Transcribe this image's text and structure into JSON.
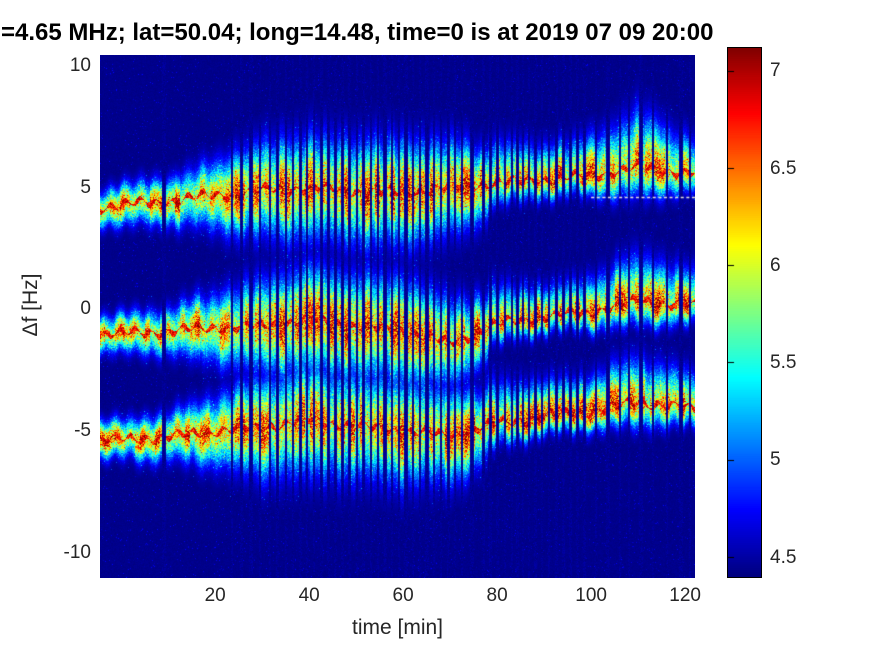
{
  "title": "=4.65 MHz;  lat=50.04; long=14.48, time=0 is at 2019 07 09 20:00",
  "colors": {
    "page_background": "#ffffff",
    "tick_label": "#262626",
    "title_text": "#000000",
    "plot_background_navy": "#00008b",
    "dotted_line": "#e4e4dc"
  },
  "chart_data": {
    "type": "heatmap",
    "title": "=4.65 MHz;  lat=50.04; long=14.48, time=0 is at 2019 07 09 20:00",
    "xlabel": "time [min]",
    "ylabel": "Δf [Hz]",
    "x_unit": "min",
    "y_unit": "Hz",
    "xlim": [
      -4.5,
      122.1
    ],
    "ylim": [
      -11.03,
      10.45
    ],
    "xticks": [
      20,
      40,
      60,
      80,
      100,
      120
    ],
    "yticks": [
      10,
      5,
      0,
      -5,
      -10
    ],
    "grid": false,
    "colormap": "jet",
    "clim": [
      4.4,
      7.12
    ],
    "colorbar_ticks": [
      7,
      6.5,
      6,
      5.5,
      5,
      4.5
    ],
    "background_level": 4.45,
    "bands": [
      {
        "name": "upper-doppler-trace",
        "times_min": [
          -4.5,
          0,
          10,
          20,
          30,
          40,
          50,
          60,
          70,
          80,
          90,
          100,
          110,
          122
        ],
        "center_hz": [
          4.2,
          4.3,
          4.45,
          4.7,
          4.9,
          5.0,
          4.85,
          4.8,
          5.0,
          5.2,
          5.35,
          5.5,
          5.85,
          5.6
        ],
        "spread_hz": [
          0.7,
          0.8,
          0.9,
          1.3,
          1.8,
          2.0,
          2.0,
          2.0,
          1.8,
          1.2,
          1.0,
          1.1,
          1.6,
          1.0
        ]
      },
      {
        "name": "middle-doppler-trace",
        "times_min": [
          -4.5,
          0,
          10,
          20,
          30,
          40,
          50,
          60,
          70,
          80,
          90,
          100,
          110,
          122
        ],
        "center_hz": [
          -1.0,
          -1.0,
          -0.9,
          -0.75,
          -0.7,
          -0.4,
          -0.7,
          -0.85,
          -1.4,
          -0.6,
          -0.3,
          -0.1,
          0.35,
          0.15
        ],
        "spread_hz": [
          0.7,
          0.75,
          0.9,
          1.3,
          1.8,
          2.0,
          2.0,
          2.0,
          1.7,
          1.1,
          0.9,
          1.0,
          1.3,
          1.0
        ]
      },
      {
        "name": "lower-doppler-trace",
        "times_min": [
          -4.5,
          0,
          10,
          20,
          30,
          40,
          50,
          60,
          70,
          80,
          90,
          100,
          110,
          122
        ],
        "center_hz": [
          -5.4,
          -5.35,
          -5.25,
          -5.0,
          -4.85,
          -4.55,
          -4.8,
          -5.0,
          -5.2,
          -4.7,
          -4.4,
          -4.2,
          -3.8,
          -4.1
        ],
        "spread_hz": [
          0.7,
          0.75,
          0.9,
          1.3,
          1.9,
          2.1,
          2.0,
          2.0,
          1.8,
          1.2,
          1.0,
          1.0,
          1.3,
          1.0
        ]
      }
    ],
    "gap_stripe_times_min": [
      9,
      23.5,
      25.5,
      27.5,
      29.5,
      31.5,
      33.2,
      35,
      36.5,
      38,
      39.5,
      41,
      42.5,
      44,
      45.5,
      47,
      48.5,
      50,
      51.5,
      53,
      54.5,
      56,
      57.5,
      59,
      60.5,
      62,
      63.5,
      65,
      66.5,
      68,
      69.5,
      71,
      72.5,
      74.5,
      77,
      78.5,
      80,
      81.5,
      83,
      84.2,
      85.4,
      86.6,
      88,
      89.5,
      91,
      92.5,
      94,
      95.5,
      97,
      98.5,
      101,
      103.5,
      106,
      108,
      110.5,
      113,
      116,
      119,
      121
    ],
    "dotted_reference_line": {
      "freq_hz": 4.62,
      "t_start_min": 100,
      "t_end_min": 122.1
    }
  },
  "layout_values": {
    "noise_seed": 42
  }
}
